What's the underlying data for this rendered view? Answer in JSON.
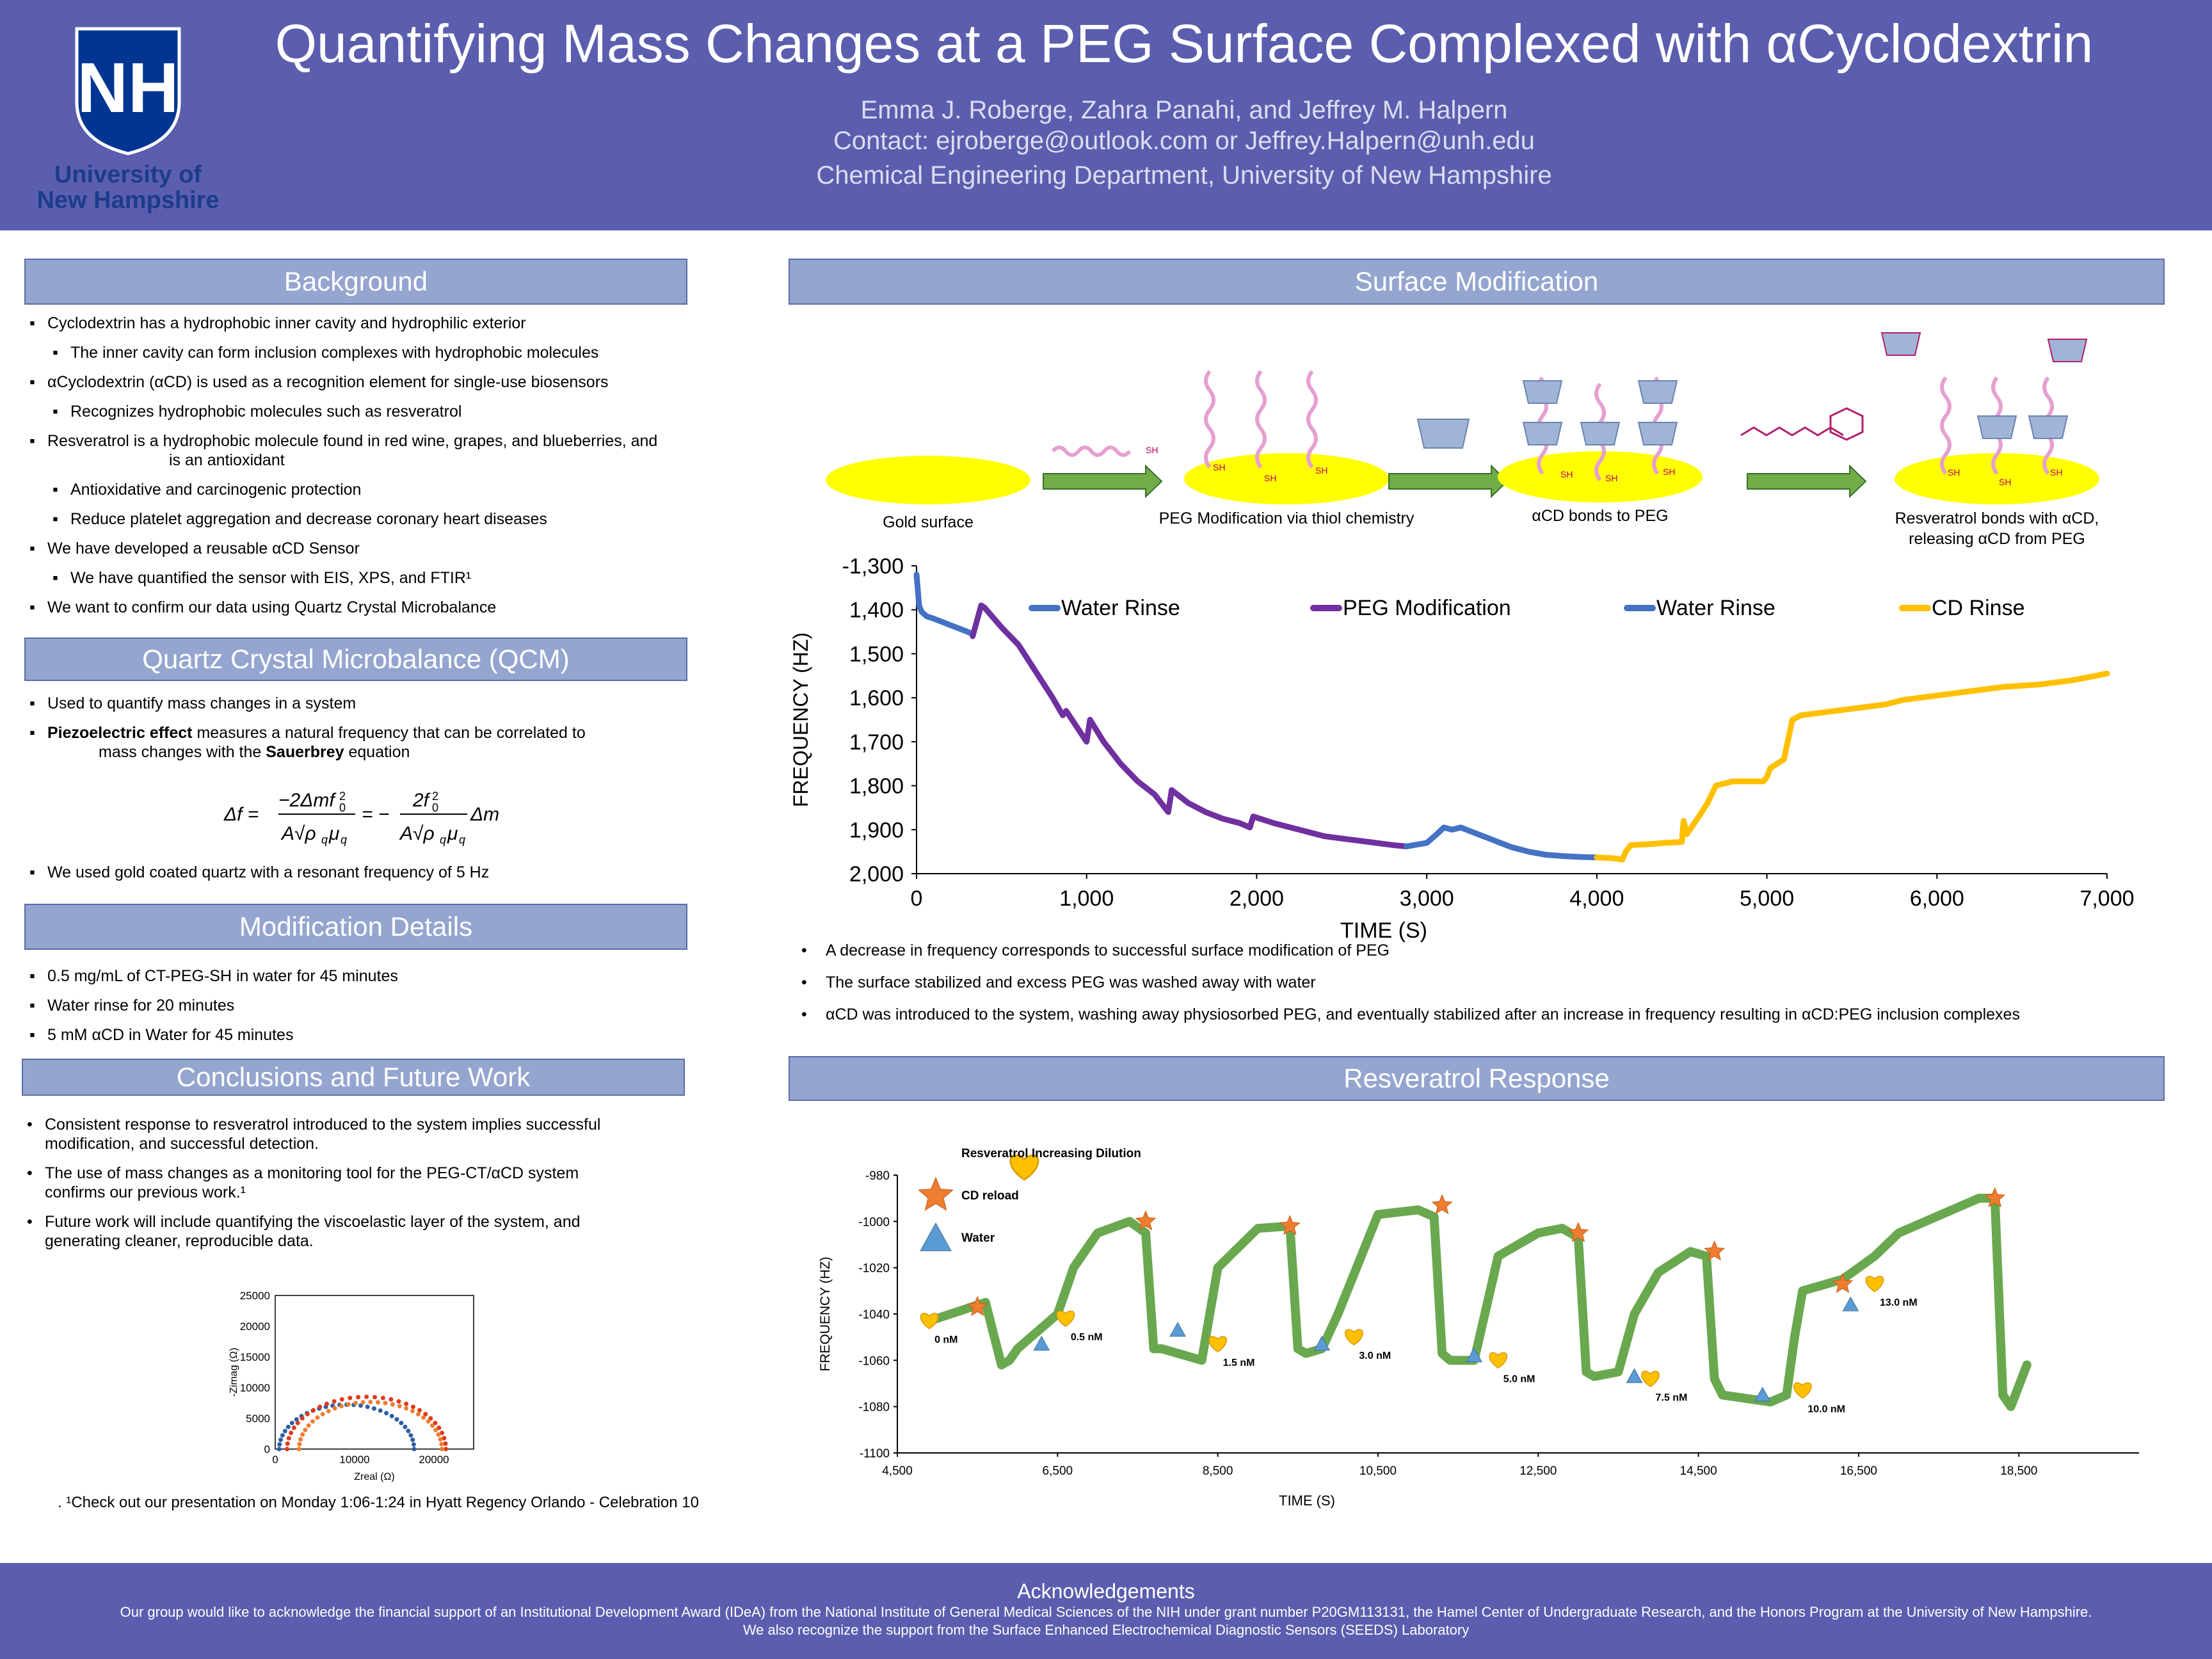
{
  "header": {
    "title": "Quantifying Mass Changes at a PEG Surface Complexed with αCyclodextrin",
    "authors": "Emma J. Roberge, Zahra Panahi, and Jeffrey M. Halpern",
    "contact": "Contact: ejroberge@outlook.com or Jeffrey.Halpern@unh.edu",
    "department": "Chemical Engineering Department, University of New Hampshire",
    "logo_letters": "NH",
    "logo_line1": "University of",
    "logo_line2": "New Hampshire"
  },
  "background": {
    "heading": "Background",
    "items": [
      "Cyclodextrin has a hydrophobic inner cavity and hydrophilic exterior",
      "The inner cavity can form inclusion complexes with hydrophobic molecules",
      "αCyclodextrin (αCD) is used as a recognition element for single-use biosensors",
      "Recognizes hydrophobic molecules such as resveratrol",
      "Resveratrol is a hydrophobic molecule found in red wine, grapes, and blueberries, and",
      "is an antioxidant",
      "Antioxidative and carcinogenic protection",
      "Reduce platelet aggregation  and decrease coronary heart diseases",
      "We have developed a reusable αCD Sensor",
      "We have quantified the sensor with EIS, XPS, and FTIR¹",
      "We want to confirm our data using Quartz Crystal Microbalance"
    ]
  },
  "qcm": {
    "heading": "Quartz Crystal Microbalance (QCM)",
    "item1": "Used to quantify mass changes in a system",
    "item2_bold": "Piezoelectric effect",
    "item2_rest": " measures a natural frequency that can be correlated to",
    "item2_line2a": "mass changes with the ",
    "item2_line2b": "Sauerbrey",
    "item2_line2c": " equation",
    "item3": "We used gold coated quartz with a resonant frequency of 5 Hz"
  },
  "modification": {
    "heading": "Modification Details",
    "items": [
      "0.5 mg/mL of CT-PEG-SH in water for 45 minutes",
      "Water rinse for 20 minutes",
      "5 mM αCD in Water for 45 minutes"
    ]
  },
  "conclusions": {
    "heading": "Conclusions and Future Work",
    "items": [
      [
        "Consistent response to resveratrol introduced to the system implies successful",
        "modification, and successful detection."
      ],
      [
        "The use of mass changes as a monitoring tool for the PEG-CT/αCD system",
        "confirms our previous work.¹"
      ],
      [
        "Future work will include quantifying the viscoelastic layer of the system, and",
        "generating cleaner, reproducible data."
      ]
    ],
    "footnote": "¹Check out our presentation on Monday 1:06-1:24 in Hyatt Regency Orlando - Celebration 10"
  },
  "surface": {
    "heading": "Surface Modification",
    "steps": [
      "Gold surface",
      "PEG Modification via thiol chemistry",
      "αCD bonds to PEG",
      "Resveratrol bonds with αCD,",
      "releasing αCD from PEG"
    ],
    "sh": "SH",
    "notes": [
      "A decrease in frequency corresponds to successful surface modification of PEG",
      "The surface stabilized and excess PEG was washed away with water",
      "αCD was introduced to the system, washing away physiosorbed PEG, and eventually stabilized after an increase in frequency resulting in αCD:PEG inclusion complexes"
    ]
  },
  "resveratrol": {
    "heading": "Resveratrol Response"
  },
  "acknowledgements": {
    "heading": "Acknowledgements",
    "line1": "Our group would like to acknowledge the financial support of an Institutional Development Award (IDeA) from the National Institute of General Medical Sciences of the NIH under grant number P20GM113131, the Hamel Center of Undergraduate Research, and the Honors Program at the University of New Hampshire.",
    "line2": "We also recognize the support from the Surface Enhanced Electrochemical Diagnostic Sensors (SEEDS) Laboratory"
  },
  "chart_data": [
    {
      "type": "line",
      "xlabel": "TIME (S)",
      "ylabel": "FREQUENCY (HZ)",
      "xlim": [
        0,
        7000
      ],
      "ylim": [
        -2000,
        -1300
      ],
      "x_ticks": [
        "0",
        "1,000",
        "2,000",
        "3,000",
        "4,000",
        "5,000",
        "6,000",
        "7,000"
      ],
      "y_ticks": [
        "-1,300",
        "1,400",
        "1,500",
        "1,600",
        "1,700",
        "1,800",
        "1,900",
        "2,000"
      ],
      "legend_position": "top",
      "colors": {
        "water": "#4472c4",
        "peg": "#7030a0",
        "cd": "#ffc000"
      },
      "series": [
        {
          "name": "Water Rinse",
          "color": "#4472c4",
          "x": [
            0,
            15,
            30,
            60,
            100,
            200,
            300,
            330
          ],
          "y": [
            -1320,
            -1390,
            -1405,
            -1415,
            -1420,
            -1435,
            -1450,
            -1455
          ]
        },
        {
          "name": "PEG Modification",
          "color": "#7030a0",
          "x": [
            330,
            380,
            400,
            500,
            600,
            700,
            800,
            860,
            880,
            1000,
            1020,
            1100,
            1200,
            1300,
            1400,
            1480,
            1500,
            1600,
            1700,
            1800,
            1900,
            1960,
            1980,
            2100,
            2200,
            2300,
            2400,
            2500,
            2600,
            2700,
            2800,
            2880
          ],
          "y": [
            -1460,
            -1390,
            -1395,
            -1440,
            -1480,
            -1540,
            -1600,
            -1640,
            -1630,
            -1700,
            -1650,
            -1700,
            -1750,
            -1790,
            -1820,
            -1860,
            -1810,
            -1840,
            -1860,
            -1875,
            -1885,
            -1895,
            -1870,
            -1885,
            -1895,
            -1905,
            -1915,
            -1920,
            -1925,
            -1930,
            -1935,
            -1938
          ]
        },
        {
          "name": "Water Rinse",
          "color": "#4472c4",
          "x": [
            2880,
            3000,
            3060,
            3100,
            3150,
            3200,
            3300,
            3400,
            3500,
            3600,
            3700,
            3800,
            3900,
            4000
          ],
          "y": [
            -1938,
            -1930,
            -1910,
            -1895,
            -1900,
            -1895,
            -1910,
            -1925,
            -1940,
            -1950,
            -1957,
            -1960,
            -1962,
            -1963
          ]
        },
        {
          "name": "CD Rinse",
          "color": "#ffc000",
          "x": [
            4000,
            4100,
            4150,
            4170,
            4200,
            4300,
            4400,
            4500,
            4510,
            4530,
            4600,
            4650,
            4700,
            4800,
            4900,
            4980,
            5000,
            5020,
            5100,
            5150,
            5200,
            5300,
            5500,
            5700,
            5800,
            6000,
            6200,
            6400,
            6600,
            6800,
            7000
          ],
          "y": [
            -1963,
            -1965,
            -1968,
            -1950,
            -1935,
            -1933,
            -1930,
            -1928,
            -1880,
            -1910,
            -1870,
            -1840,
            -1800,
            -1790,
            -1790,
            -1790,
            -1780,
            -1760,
            -1740,
            -1650,
            -1640,
            -1635,
            -1625,
            -1615,
            -1605,
            -1595,
            -1585,
            -1575,
            -1570,
            -1560,
            -1545
          ]
        }
      ]
    },
    {
      "type": "scatter",
      "xlabel": "TIME (S)",
      "ylabel": "FREQUENCY (HZ)",
      "xlim": [
        4500,
        20000
      ],
      "ylim": [
        -1100,
        -980
      ],
      "x_ticks": [
        "4,500",
        "6,500",
        "8,500",
        "10,500",
        "12,500",
        "14,500",
        "16,500",
        "18,500"
      ],
      "y_ticks": [
        "-980",
        "-1000",
        "-1020",
        "-1040",
        "-1060",
        "-1080",
        "-1100"
      ],
      "legend": [
        "Resveratrol Increasing Dilution",
        "CD reload",
        "Water"
      ],
      "legend_position": "top-left",
      "colors": {
        "data": "#6aa84f",
        "resveratrol": "#ffc000",
        "cd": "#ed7d31",
        "water": "#5b9bd5"
      },
      "trace": {
        "x": [
          4900,
          5600,
          5800,
          5900,
          6000,
          6500,
          6700,
          7000,
          7400,
          7600,
          7700,
          7800,
          8300,
          8500,
          9000,
          9400,
          9500,
          9600,
          9800,
          10000,
          10500,
          11000,
          11200,
          11300,
          11400,
          11700,
          12000,
          12500,
          12800,
          13000,
          13100,
          13200,
          13500,
          13700,
          14000,
          14400,
          14600,
          14700,
          14800,
          15000,
          15400,
          15600,
          15700,
          15800,
          16300,
          16700,
          17000,
          18000,
          18200,
          18300,
          18400,
          18600
        ],
        "y": [
          -1043,
          -1035,
          -1062,
          -1060,
          -1055,
          -1040,
          -1020,
          -1005,
          -1000,
          -1005,
          -1055,
          -1055,
          -1060,
          -1020,
          -1003,
          -1002,
          -1055,
          -1057,
          -1055,
          -1040,
          -997,
          -995,
          -998,
          -1057,
          -1060,
          -1060,
          -1015,
          -1005,
          -1003,
          -1007,
          -1065,
          -1067,
          -1065,
          -1040,
          -1022,
          -1013,
          -1015,
          -1068,
          -1075,
          -1076,
          -1078,
          -1075,
          -1050,
          -1030,
          -1025,
          -1015,
          -1005,
          -990,
          -990,
          -1075,
          -1080,
          -1062
        ]
      },
      "resveratrol_markers": {
        "x": [
          4900,
          6600,
          8500,
          10200,
          12000,
          13900,
          15800,
          16700
        ],
        "y": [
          -1043,
          -1042,
          -1053,
          -1050,
          -1060,
          -1068,
          -1073,
          -1027
        ],
        "labels": [
          "0 nM",
          "0.5 nM",
          "1.5 nM",
          "3.0 nM",
          "5.0 nM",
          "7.5 nM",
          "10.0 nM",
          "13.0 nM"
        ]
      },
      "cd_markers": {
        "x": [
          5500,
          7600,
          9400,
          11300,
          13000,
          14700,
          16300,
          18200
        ],
        "y": [
          -1037,
          -1000,
          -1002,
          -993,
          -1005,
          -1013,
          -1027,
          -990
        ]
      },
      "water_markers": {
        "x": [
          6300,
          8000,
          9800,
          11700,
          13700,
          15300,
          16400
        ],
        "y": [
          -1053,
          -1047,
          -1053,
          -1058,
          -1067,
          -1075,
          -1036
        ]
      }
    },
    {
      "type": "scatter",
      "xlabel": "Zreal (Ω)",
      "ylabel": "-Zimag (Ω)",
      "xlim": [
        0,
        25000
      ],
      "ylim": [
        0,
        25000
      ],
      "x_ticks": [
        "0",
        "10000",
        "20000"
      ],
      "y_ticks": [
        "0",
        "5000",
        "10000",
        "15000",
        "20000",
        "25000"
      ],
      "series": [
        {
          "color": "#2e5fa3",
          "center": 9000,
          "radius": 8500,
          "x0": 500
        },
        {
          "color": "#e03a1c",
          "center": 11500,
          "radius": 10000,
          "x0": 1500
        },
        {
          "color": "#ed7d31",
          "center": 12000,
          "radius": 9000,
          "x0": 3000
        }
      ]
    }
  ]
}
